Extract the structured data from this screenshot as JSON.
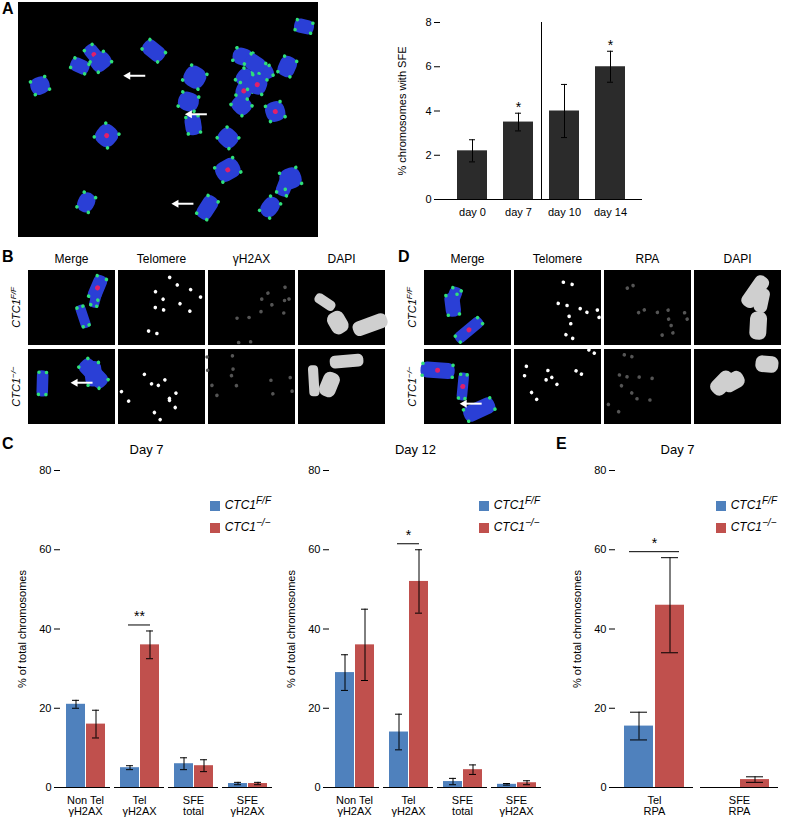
{
  "image_panels": [
    {
      "panel": "A"
    },
    {
      "panel": "B",
      "columns": [
        "Merge",
        "Telomere",
        "γH2AX",
        "DAPI"
      ],
      "rows": [
        "CTC1F/F",
        "CTC1−/−"
      ]
    },
    {
      "panel": "D",
      "columns": [
        "Merge",
        "Telomere",
        "RPA",
        "DAPI"
      ],
      "rows": [
        "CTC1F/F",
        "CTC1−/−"
      ]
    }
  ],
  "chart_data": [
    {
      "panel": "A",
      "type": "bar",
      "y_label": "% chromosomes with SFE",
      "categories": [
        "day 0",
        "day 7",
        "day 10",
        "day 14"
      ],
      "values": [
        2.2,
        3.5,
        4.0,
        6.0
      ],
      "errors": [
        0.5,
        0.4,
        1.2,
        0.7
      ],
      "color": "#2b2b2b",
      "ylim": [
        0,
        8
      ],
      "yticks": [
        0,
        2,
        4,
        6,
        8
      ],
      "annotations": [
        {
          "category": "day 7",
          "text": "*"
        },
        {
          "category": "day 14",
          "text": "*"
        }
      ]
    },
    {
      "panel": "C",
      "type": "bar",
      "title": "Day 7",
      "y_label": "% of total chromosomes",
      "categories": [
        "Non Tel γH2AX",
        "Tel γH2AX",
        "SFE total",
        "SFE γH2AX"
      ],
      "series": [
        {
          "name": "CTC1F/F",
          "color": "#4f81bd",
          "values": [
            21,
            5,
            6,
            1
          ],
          "errors": [
            1,
            0.5,
            1.5,
            0.3
          ]
        },
        {
          "name": "CTC1−/−",
          "color": "#c0504d",
          "values": [
            16,
            36,
            5.5,
            1
          ],
          "errors": [
            3.5,
            3.5,
            1.5,
            0.3
          ]
        }
      ],
      "ylim": [
        0,
        80
      ],
      "yticks": [
        0,
        20,
        40,
        60,
        80
      ],
      "legend": "top-right",
      "annotations": [
        {
          "category": "Tel γH2AX",
          "text": "**"
        }
      ]
    },
    {
      "panel": "C",
      "type": "bar",
      "title": "Day 12",
      "y_label": "% of total chromosomes",
      "categories": [
        "Non Tel γH2AX",
        "Tel γH2AX",
        "SFE total",
        "SFE γH2AX"
      ],
      "series": [
        {
          "name": "CTC1F/F",
          "color": "#4f81bd",
          "values": [
            29,
            14,
            1.5,
            0.8
          ],
          "errors": [
            4.5,
            4.5,
            0.8,
            0.2
          ]
        },
        {
          "name": "CTC1−/−",
          "color": "#c0504d",
          "values": [
            36,
            52,
            4.5,
            1.2
          ],
          "errors": [
            9,
            8,
            1.2,
            0.5
          ]
        }
      ],
      "ylim": [
        0,
        80
      ],
      "yticks": [
        0,
        20,
        40,
        60,
        80
      ],
      "legend": "top-right",
      "annotations": [
        {
          "category": "Tel γH2AX",
          "text": "*"
        }
      ]
    },
    {
      "panel": "E",
      "type": "bar",
      "title": "Day 7",
      "y_label": "% of total chromosomes",
      "categories": [
        "Tel RPA",
        "SFE RPA"
      ],
      "series": [
        {
          "name": "CTC1F/F",
          "color": "#4f81bd",
          "values": [
            15.5,
            0
          ],
          "errors": [
            3.5,
            0
          ]
        },
        {
          "name": "CTC1−/−",
          "color": "#c0504d",
          "values": [
            46,
            2
          ],
          "errors": [
            12,
            0.7
          ]
        }
      ],
      "ylim": [
        0,
        80
      ],
      "yticks": [
        0,
        20,
        40,
        60,
        80
      ],
      "legend": "top-right",
      "annotations": [
        {
          "category": "Tel RPA",
          "text": "*"
        }
      ]
    }
  ]
}
